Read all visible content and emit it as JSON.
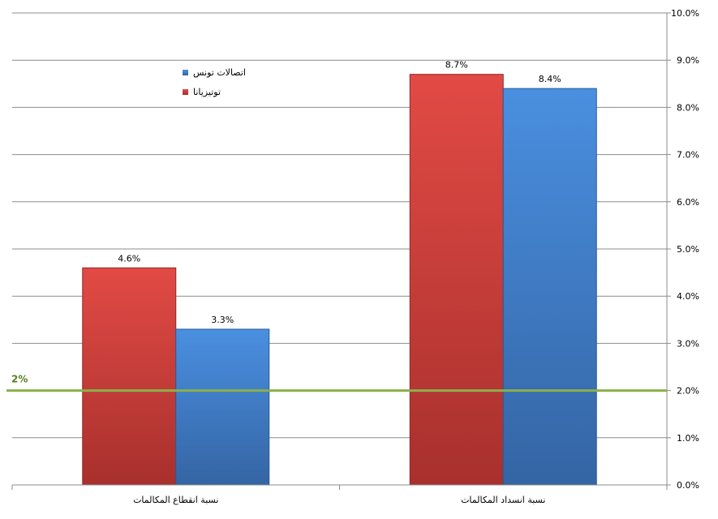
{
  "chart_data": {
    "type": "bar",
    "categories": [
      "نسبة انقطاع المكالمات",
      "نسبة انسداد المكالمات"
    ],
    "series": [
      {
        "name": "توتيزيانا",
        "values": [
          4.6,
          8.7
        ],
        "color": "#c93a36",
        "labels": [
          "4.6%",
          "8.7%"
        ]
      },
      {
        "name": "اتصالات تونس",
        "values": [
          3.3,
          8.4
        ],
        "color": "#3f7fd0",
        "labels": [
          "3.3%",
          "8.4%"
        ]
      }
    ],
    "legend_order": [
      "اتصالات تونس",
      "توتيزيانا"
    ],
    "ylim": [
      0,
      10
    ],
    "yticks": [
      0,
      1,
      2,
      3,
      4,
      5,
      6,
      7,
      8,
      9,
      10
    ],
    "ytick_labels": [
      "0.0%",
      "1.0%",
      "2.0%",
      "3.0%",
      "4.0%",
      "5.0%",
      "6.0%",
      "7.0%",
      "8.0%",
      "9.0%",
      "10.0%"
    ],
    "y_axis_side": "right",
    "grid": true,
    "legend_position": "top-left",
    "reference_line": {
      "value": 2,
      "label": "2%",
      "color": "#8ab04a"
    }
  }
}
